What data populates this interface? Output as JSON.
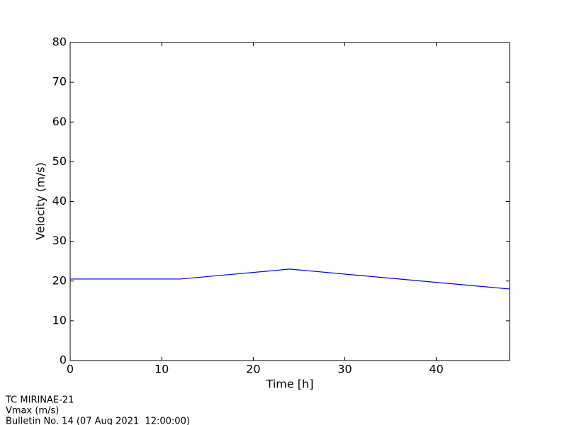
{
  "chart_data": {
    "type": "line",
    "x": [
      0,
      12,
      24,
      48
    ],
    "series": [
      {
        "color": "#0000ff",
        "values": [
          20.5,
          20.5,
          23,
          18
        ]
      }
    ],
    "xlim": [
      0,
      48
    ],
    "xticks": [
      0,
      10,
      20,
      30,
      40
    ],
    "ylim": [
      0,
      80
    ],
    "yticks": [
      0,
      10,
      20,
      30,
      40,
      50,
      60,
      70,
      80
    ],
    "xlabel": "Time [h]",
    "ylabel": "Velocity (m/s)",
    "grid": false,
    "annotations": [
      "TC MIRINAE-21",
      "Vmax (m/s)",
      "Bulletin No. 14 (07 Aug 2021  12:00:00)"
    ]
  }
}
